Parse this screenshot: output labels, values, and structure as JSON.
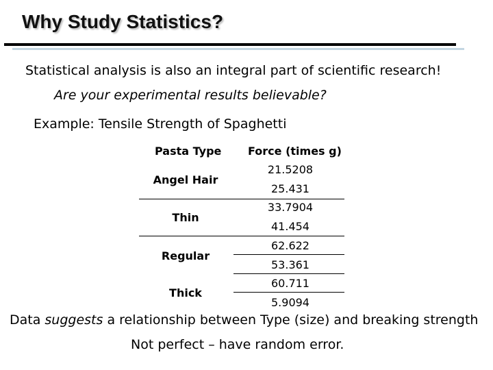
{
  "slide": {
    "title": "Why Study Statistics?",
    "intro": "Statistical analysis is also an integral part of scientific research!",
    "question": "Are your experimental results believable?",
    "example": "Example:  Tensile Strength of Spaghetti",
    "conclusion_before": "Data ",
    "conclusion_emph": "suggests",
    "conclusion_after": " a relationship between Type (size) and breaking strength",
    "note": "Not perfect – have random error."
  },
  "table": {
    "headers": [
      "Pasta Type",
      "Force (times g)"
    ],
    "rows": [
      {
        "type": "Angel Hair",
        "values": [
          "21.5208",
          "25.431"
        ]
      },
      {
        "type": "Thin",
        "values": [
          "33.7904",
          "41.454"
        ]
      },
      {
        "type": "Regular",
        "values": [
          "62.622",
          "53.361"
        ]
      },
      {
        "type": "Thick",
        "values": [
          "60.711",
          "5.9094"
        ]
      }
    ]
  }
}
